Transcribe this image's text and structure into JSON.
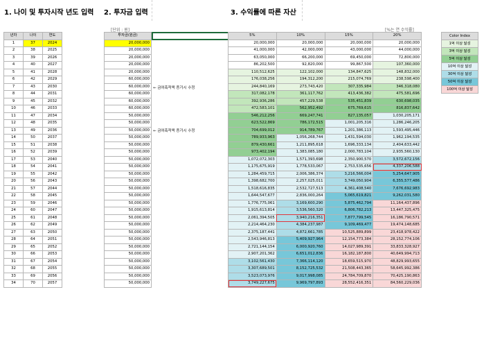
{
  "headings": {
    "h1": "1. 나이 및 투자시작 년도 입력",
    "h2": "2. 투자금 입력",
    "h3": "3. 수익률에 따른 자산"
  },
  "units": {
    "invest": "[단위 : 원]",
    "rate": "[%는 연 수익률]"
  },
  "tableA": {
    "headers": [
      "년차",
      "나이",
      "연도"
    ],
    "rows": [
      [
        "1",
        "37",
        "2024"
      ],
      [
        "2",
        "38",
        "2025"
      ],
      [
        "3",
        "39",
        "2026"
      ],
      [
        "4",
        "40",
        "2027"
      ],
      [
        "5",
        "41",
        "2028"
      ],
      [
        "6",
        "42",
        "2029"
      ],
      [
        "7",
        "43",
        "2030"
      ],
      [
        "8",
        "44",
        "2031"
      ],
      [
        "9",
        "45",
        "2032"
      ],
      [
        "10",
        "46",
        "2033"
      ],
      [
        "11",
        "47",
        "2034"
      ],
      [
        "12",
        "48",
        "2035"
      ],
      [
        "13",
        "49",
        "2036"
      ],
      [
        "14",
        "50",
        "2037"
      ],
      [
        "15",
        "51",
        "2038"
      ],
      [
        "16",
        "52",
        "2039"
      ],
      [
        "17",
        "53",
        "2040"
      ],
      [
        "18",
        "54",
        "2041"
      ],
      [
        "19",
        "55",
        "2042"
      ],
      [
        "20",
        "56",
        "2043"
      ],
      [
        "21",
        "57",
        "2044"
      ],
      [
        "22",
        "58",
        "2045"
      ],
      [
        "23",
        "59",
        "2046"
      ],
      [
        "24",
        "60",
        "2047"
      ],
      [
        "25",
        "61",
        "2048"
      ],
      [
        "26",
        "62",
        "2049"
      ],
      [
        "27",
        "63",
        "2050"
      ],
      [
        "28",
        "64",
        "2051"
      ],
      [
        "29",
        "65",
        "2052"
      ],
      [
        "30",
        "66",
        "2053"
      ],
      [
        "31",
        "67",
        "2054"
      ],
      [
        "32",
        "68",
        "2055"
      ],
      [
        "33",
        "69",
        "2056"
      ],
      [
        "34",
        "70",
        "2057"
      ]
    ]
  },
  "tableB": {
    "header": "투자금(원금)",
    "rows": [
      "20,000,000",
      "20,000,000",
      "20,000,000",
      "20,000,000",
      "20,000,000",
      "60,000,000",
      "60,000,000",
      "60,000,000",
      "60,000,000",
      "60,000,000",
      "50,000,000",
      "50,000,000",
      "50,000,000",
      "50,000,000",
      "50,000,000",
      "50,000,000",
      "50,000,000",
      "50,000,000",
      "50,000,000",
      "50,000,000",
      "50,000,000",
      "50,000,000",
      "50,000,000",
      "50,000,000",
      "50,000,000",
      "50,000,000",
      "50,000,000",
      "50,000,000",
      "50,000,000",
      "50,000,000",
      "50,000,000",
      "50,000,000",
      "50,000,000",
      "50,000,000"
    ]
  },
  "notes": {
    "n1": "← 금여축적액 증가시 수정",
    "n2": "← 금여축적액 증가시 수정"
  },
  "tableC": {
    "headers": [
      "5%",
      "10%",
      "15%",
      "20%"
    ],
    "rows": [
      [
        "20,000,000",
        "20,000,000",
        "20,000,000",
        "20,000,000"
      ],
      [
        "41,000,000",
        "42,000,000",
        "43,000,000",
        "44,000,000"
      ],
      [
        "63,050,000",
        "66,200,000",
        "69,450,000",
        "72,800,000"
      ],
      [
        "86,202,500",
        "92,820,000",
        "99,867,500",
        "107,360,000"
      ],
      [
        "110,512,625",
        "122,102,000",
        "134,847,625",
        "148,832,000"
      ],
      [
        "176,038,256",
        "194,312,200",
        "215,074,769",
        "238,598,400"
      ],
      [
        "244,840,169",
        "273,743,420",
        "307,335,984",
        "346,318,080"
      ],
      [
        "317,082,178",
        "361,117,762",
        "413,436,382",
        "475,581,696"
      ],
      [
        "392,936,286",
        "457,229,538",
        "535,451,839",
        "630,698,035"
      ],
      [
        "472,583,101",
        "562,952,492",
        "675,769,615",
        "816,837,642"
      ],
      [
        "546,212,256",
        "669,247,741",
        "827,135,057",
        "1,030,205,171"
      ],
      [
        "623,522,869",
        "786,172,515",
        "1,001,205,316",
        "1,286,246,205"
      ],
      [
        "704,699,012",
        "914,789,767",
        "1,201,386,113",
        "1,593,495,446"
      ],
      [
        "789,933,963",
        "1,056,268,744",
        "1,431,594,030",
        "1,962,194,535"
      ],
      [
        "879,430,661",
        "1,211,895,618",
        "1,696,333,134",
        "2,404,633,442"
      ],
      [
        "973,402,194",
        "1,383,085,180",
        "2,000,783,104",
        "2,935,560,130"
      ],
      [
        "1,072,072,303",
        "1,571,393,698",
        "2,350,900,570",
        "3,572,672,156"
      ],
      [
        "1,175,675,919",
        "1,778,533,067",
        "2,753,535,656",
        "4,337,206,588"
      ],
      [
        "1,284,459,715",
        "2,006,386,374",
        "3,216,566,004",
        "5,254,647,905"
      ],
      [
        "1,398,682,700",
        "2,257,025,011",
        "3,749,050,904",
        "6,355,577,486"
      ],
      [
        "1,518,616,835",
        "2,532,727,513",
        "4,361,408,540",
        "7,676,692,983"
      ],
      [
        "1,644,547,677",
        "2,836,000,264",
        "5,065,619,821",
        "9,262,031,580"
      ],
      [
        "1,776,775,061",
        "3,169,600,290",
        "5,875,462,794",
        "11,164,437,896"
      ],
      [
        "1,915,613,814",
        "3,536,560,320",
        "6,806,782,213",
        "13,447,325,475"
      ],
      [
        "2,061,394,505",
        "3,940,216,351",
        "7,877,799,545",
        "16,186,790,571"
      ],
      [
        "2,214,464,230",
        "4,384,237,987",
        "9,109,469,477",
        "19,474,148,685"
      ],
      [
        "2,375,187,441",
        "4,872,661,785",
        "10,525,889,899",
        "23,418,978,422"
      ],
      [
        "2,543,946,813",
        "5,409,927,964",
        "12,154,773,384",
        "28,152,774,106"
      ],
      [
        "2,721,144,154",
        "6,000,920,760",
        "14,027,989,391",
        "33,833,328,927"
      ],
      [
        "2,907,201,362",
        "6,651,012,836",
        "16,182,187,800",
        "40,649,994,713"
      ],
      [
        "3,102,561,430",
        "7,366,114,120",
        "18,659,515,970",
        "48,829,993,655"
      ],
      [
        "3,307,689,501",
        "8,152,725,532",
        "21,508,443,365",
        "58,645,992,386"
      ],
      [
        "3,523,073,976",
        "9,017,998,085",
        "24,784,709,870",
        "70,425,190,863"
      ],
      [
        "3,749,227,675",
        "9,969,797,893",
        "28,552,416,351",
        "84,560,229,036"
      ]
    ]
  },
  "legend": {
    "header": "Color Index",
    "items": [
      "1억 이상 달성",
      "3억 이상 달성",
      "5억 이상 달성",
      "10억 이상 달성",
      "30억 이상 달성",
      "50억 이상 달성",
      "100억 이상 달성"
    ],
    "colors": [
      "#e6f4e0",
      "#c2e6bb",
      "#92cf93",
      "#e2f2f5",
      "#aedde8",
      "#77c7d9",
      "#f9d7d7"
    ]
  }
}
